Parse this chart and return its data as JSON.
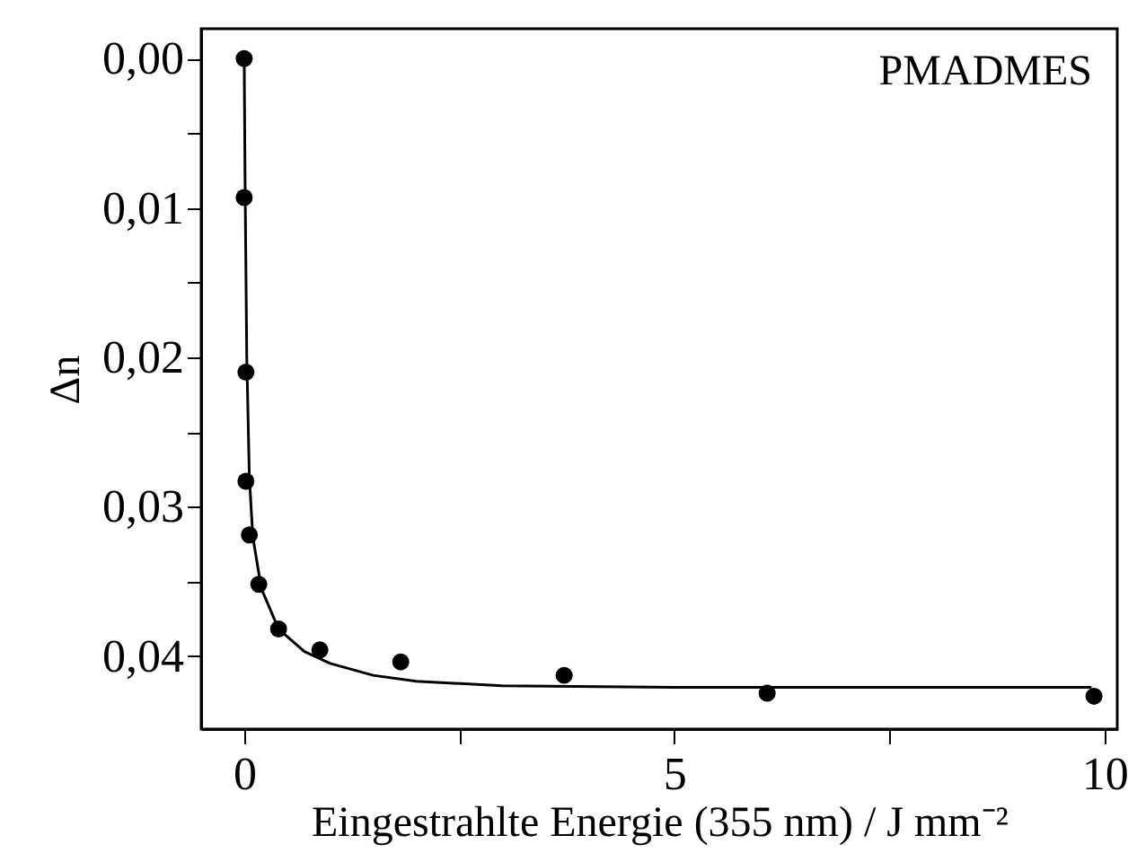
{
  "chart_data": {
    "type": "scatter",
    "xlabel": "Eingestrahlte Energie (355 nm) / J mm⁻²",
    "ylabel": "Δn",
    "annotations": [
      "PMADMES"
    ],
    "grid": false,
    "xlim": [
      -0.5,
      10.15
    ],
    "xticks": [
      0,
      {
        "value": 2.5,
        "label": null
      },
      5,
      {
        "value": 7.5,
        "label": null
      },
      10
    ],
    "ylim": [
      0.0449,
      -0.002
    ],
    "yticks": [
      {
        "value": 0,
        "label": "0,00"
      },
      {
        "value": 0.005,
        "label": null
      },
      {
        "value": 0.01,
        "label": "0,01"
      },
      {
        "value": 0.015,
        "label": null
      },
      {
        "value": 0.02,
        "label": "0,02"
      },
      {
        "value": 0.025,
        "label": null
      },
      {
        "value": 0.03,
        "label": "0,03"
      },
      {
        "value": 0.035,
        "label": null
      },
      {
        "value": 0.04,
        "label": "0,04"
      }
    ],
    "series": [
      {
        "color": "#000000",
        "marker": "circle",
        "x": [
          0,
          0,
          0.02,
          0.02,
          0.06,
          0.17,
          0.4,
          0.88,
          1.82,
          3.72,
          6.08,
          9.88
        ],
        "values": [
          0,
          0.0093,
          0.021,
          0.0283,
          0.0319,
          0.0352,
          0.0382,
          0.0396,
          0.0404,
          0.0413,
          0.0425,
          0.0427
        ]
      },
      {
        "type": "line",
        "marker": "none",
        "color": "#000000",
        "x": [
          0,
          0.01,
          0.03,
          0.06,
          0.1,
          0.2,
          0.4,
          0.7,
          1.0,
          1.5,
          2,
          3,
          5,
          9.85
        ],
        "values": [
          0,
          0.008,
          0.02,
          0.028,
          0.032,
          0.0355,
          0.0382,
          0.0397,
          0.0405,
          0.0413,
          0.0417,
          0.042,
          0.0421,
          0.0421
        ]
      }
    ]
  }
}
